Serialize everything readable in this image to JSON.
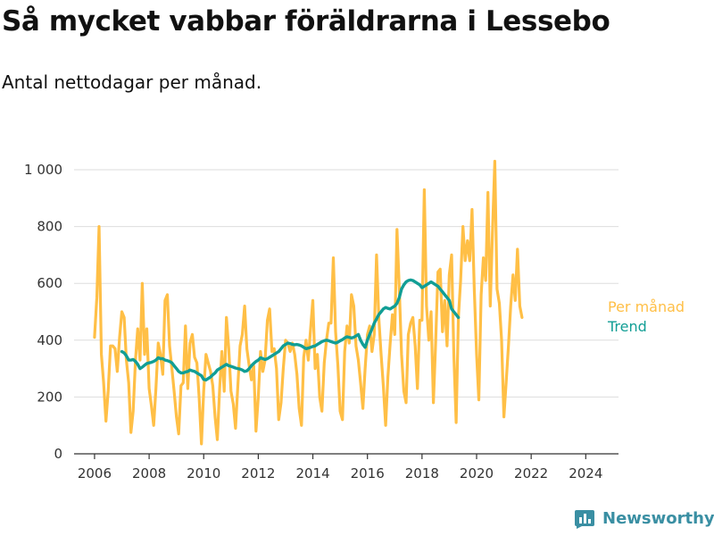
{
  "header": {
    "title": "Så mycket vabbar föräldrarna i Lessebo",
    "subtitle": "Antal nettodagar per månad."
  },
  "brand": {
    "name": "Newsworthy",
    "icon": "bar-chart-logo-icon"
  },
  "colors": {
    "per_month": "#FFBF46",
    "trend": "#119E95",
    "axis": "#333333",
    "grid": "#dddddd",
    "brand": "#3a8fa3"
  },
  "chart_data": {
    "type": "line",
    "title": "Så mycket vabbar föräldrarna i Lessebo",
    "subtitle": "Antal nettodagar per månad.",
    "xlabel": "",
    "ylabel": "",
    "x_ticks": [
      2006,
      2008,
      2010,
      2012,
      2014,
      2016,
      2018,
      2020,
      2022,
      2024
    ],
    "y_ticks": [
      0,
      200,
      400,
      600,
      800,
      1000
    ],
    "y_tick_labels": [
      "0",
      "200",
      "400",
      "600",
      "800",
      "1 000"
    ],
    "xlim": [
      2005.25,
      2025.2
    ],
    "ylim": [
      0,
      1000
    ],
    "grid": "horizontal",
    "series": [
      {
        "name": "Per månad",
        "color": "#FFBF46",
        "start": 2006.0,
        "step": 0.08333,
        "values": [
          410,
          550,
          800,
          350,
          250,
          115,
          220,
          380,
          380,
          370,
          290,
          410,
          500,
          480,
          330,
          250,
          75,
          150,
          330,
          440,
          330,
          600,
          350,
          440,
          230,
          170,
          100,
          230,
          390,
          350,
          280,
          540,
          560,
          380,
          300,
          220,
          130,
          70,
          240,
          250,
          450,
          230,
          390,
          420,
          340,
          320,
          200,
          35,
          220,
          350,
          320,
          290,
          240,
          130,
          50,
          230,
          360,
          220,
          480,
          370,
          220,
          175,
          90,
          240,
          380,
          420,
          520,
          370,
          310,
          260,
          310,
          80,
          200,
          360,
          290,
          330,
          470,
          510,
          360,
          370,
          300,
          120,
          180,
          300,
          400,
          390,
          360,
          390,
          350,
          280,
          160,
          100,
          340,
          400,
          330,
          440,
          540,
          300,
          350,
          200,
          150,
          320,
          400,
          460,
          460,
          690,
          430,
          310,
          150,
          120,
          360,
          450,
          390,
          560,
          520,
          380,
          330,
          250,
          160,
          300,
          420,
          450,
          360,
          420,
          700,
          480,
          350,
          240,
          100,
          270,
          390,
          490,
          420,
          790,
          580,
          350,
          220,
          180,
          420,
          460,
          480,
          380,
          230,
          470,
          470,
          930,
          520,
          400,
          500,
          180,
          390,
          640,
          650,
          430,
          540,
          380,
          630,
          700,
          350,
          110,
          480,
          610,
          800,
          680,
          750,
          680,
          860,
          580,
          350,
          190,
          560,
          690,
          610,
          920,
          520,
          780,
          1030,
          580,
          530,
          400,
          130,
          250,
          380,
          520,
          630,
          540,
          720,
          520,
          480
        ]
      },
      {
        "name": "Trend",
        "color": "#119E95",
        "start": 2007.0,
        "step": 0.08333,
        "values": [
          360,
          355,
          345,
          330,
          330,
          332,
          325,
          315,
          300,
          305,
          312,
          318,
          320,
          322,
          325,
          330,
          338,
          335,
          335,
          330,
          328,
          325,
          320,
          310,
          300,
          290,
          285,
          285,
          288,
          290,
          295,
          292,
          290,
          285,
          280,
          275,
          262,
          260,
          265,
          270,
          278,
          285,
          295,
          300,
          305,
          310,
          315,
          310,
          308,
          305,
          302,
          300,
          298,
          295,
          290,
          292,
          300,
          310,
          318,
          325,
          330,
          338,
          335,
          332,
          335,
          340,
          345,
          350,
          355,
          360,
          370,
          380,
          385,
          390,
          388,
          385,
          384,
          385,
          383,
          380,
          375,
          370,
          372,
          375,
          378,
          380,
          385,
          390,
          395,
          398,
          400,
          398,
          395,
          392,
          390,
          393,
          398,
          402,
          408,
          412,
          410,
          408,
          410,
          415,
          420,
          400,
          385,
          375,
          400,
          420,
          440,
          460,
          475,
          490,
          500,
          510,
          515,
          512,
          510,
          515,
          520,
          530,
          550,
          580,
          595,
          605,
          610,
          612,
          610,
          605,
          600,
          595,
          585,
          590,
          595,
          600,
          605,
          600,
          595,
          590,
          580,
          570,
          560,
          550,
          540,
          510,
          500,
          490,
          480
        ]
      }
    ]
  }
}
